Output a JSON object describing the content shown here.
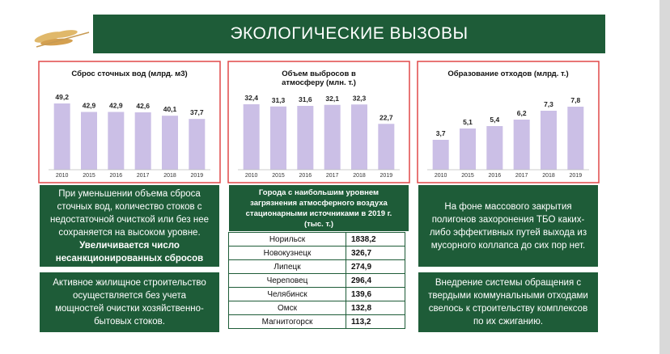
{
  "header": {
    "title": "ЭКОЛОГИЧЕСКИЕ ВЫЗОВЫ"
  },
  "chart_data": [
    {
      "type": "bar",
      "title": "Сброс сточных вод (млрд. м3)",
      "categories": [
        "2010",
        "2015",
        "2016",
        "2017",
        "2018",
        "2019"
      ],
      "values": [
        49.2,
        42.9,
        42.9,
        42.6,
        40.1,
        37.7
      ],
      "value_labels": [
        "49,2",
        "42,9",
        "42,9",
        "42,6",
        "40,1",
        "37,7"
      ],
      "color": "#cbbfe6",
      "ylim": [
        0,
        60
      ]
    },
    {
      "type": "bar",
      "title": "Объем выбросов в атмосферу (млн. т.)",
      "categories": [
        "2010",
        "2015",
        "2016",
        "2017",
        "2018",
        "2019"
      ],
      "values": [
        32.4,
        31.3,
        31.6,
        32.1,
        32.3,
        22.7
      ],
      "value_labels": [
        "32,4",
        "31,3",
        "31,6",
        "32,1",
        "32,3",
        "22,7"
      ],
      "color": "#cbbfe6",
      "ylim": [
        0,
        40
      ]
    },
    {
      "type": "bar",
      "title": "Образование отходов (млрд. т.)",
      "categories": [
        "2010",
        "2015",
        "2016",
        "2017",
        "2018",
        "2019"
      ],
      "values": [
        3.7,
        5.1,
        5.4,
        6.2,
        7.3,
        7.8
      ],
      "value_labels": [
        "3,7",
        "5,1",
        "5,4",
        "6,2",
        "7,3",
        "7,8"
      ],
      "color": "#cbbfe6",
      "ylim": [
        0,
        10
      ]
    }
  ],
  "notes": [
    {
      "text": "При уменьшении объема сброса сточных вод, количество стоков с недостаточной очисткой или без нее сохраняется на высоком уровне.",
      "emphasis": "Увеличивается число несанкционированных сбросов"
    },
    {
      "text": "Активное жилищное строительство осуществляется без учета мощностей очистки хозяйственно-бытовых стоков."
    },
    {
      "text": "На фоне массового закрытия полигонов захоронения ТБО каких-либо эффективных путей выхода из мусорного коллапса до сих пор нет."
    },
    {
      "text": "Внедрение системы обращения с твердыми коммунальными отходами свелось к строительству комплексов по их сжиганию."
    }
  ],
  "table": {
    "title": "Города с наибольшим уровнем загрязнения атмосферного воздуха стационарными источниками в 2019 г. (тыс. т.)",
    "rows": [
      [
        "Норильск",
        "1838,2"
      ],
      [
        "Новокузнецк",
        "326,7"
      ],
      [
        "Липецк",
        "274,9"
      ],
      [
        "Череповец",
        "296,4"
      ],
      [
        "Челябинск",
        "139,6"
      ],
      [
        "Омск",
        "132,8"
      ],
      [
        "Магнитогорск",
        "113,2"
      ]
    ]
  }
}
